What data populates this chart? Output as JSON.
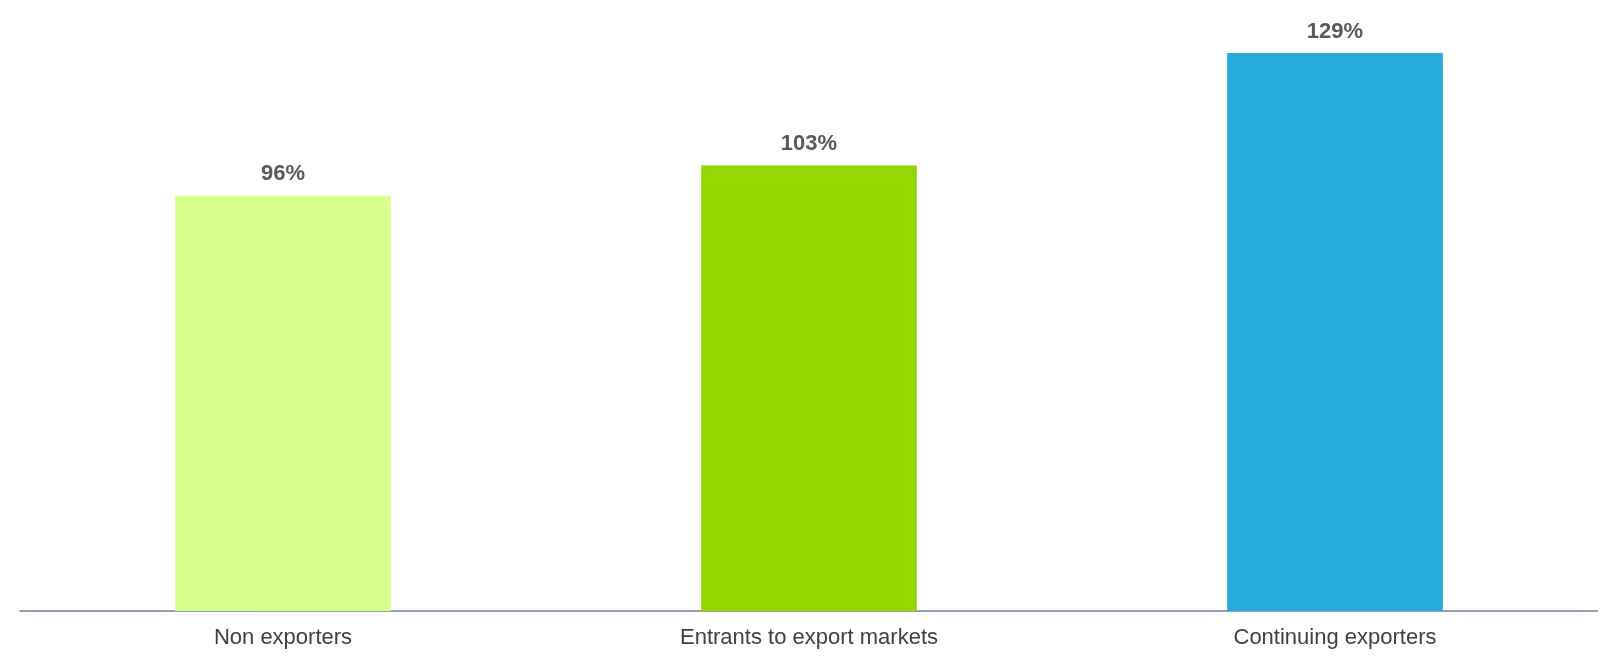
{
  "chart_data": {
    "type": "bar",
    "categories": [
      "Non exporters",
      "Entrants to export markets",
      "Continuing exporters"
    ],
    "values": [
      96,
      103,
      129
    ],
    "value_labels": [
      "96%",
      "103%",
      "129%"
    ],
    "colors": [
      "#d9ff8c",
      "#95d600",
      "#27aadc"
    ]
  }
}
